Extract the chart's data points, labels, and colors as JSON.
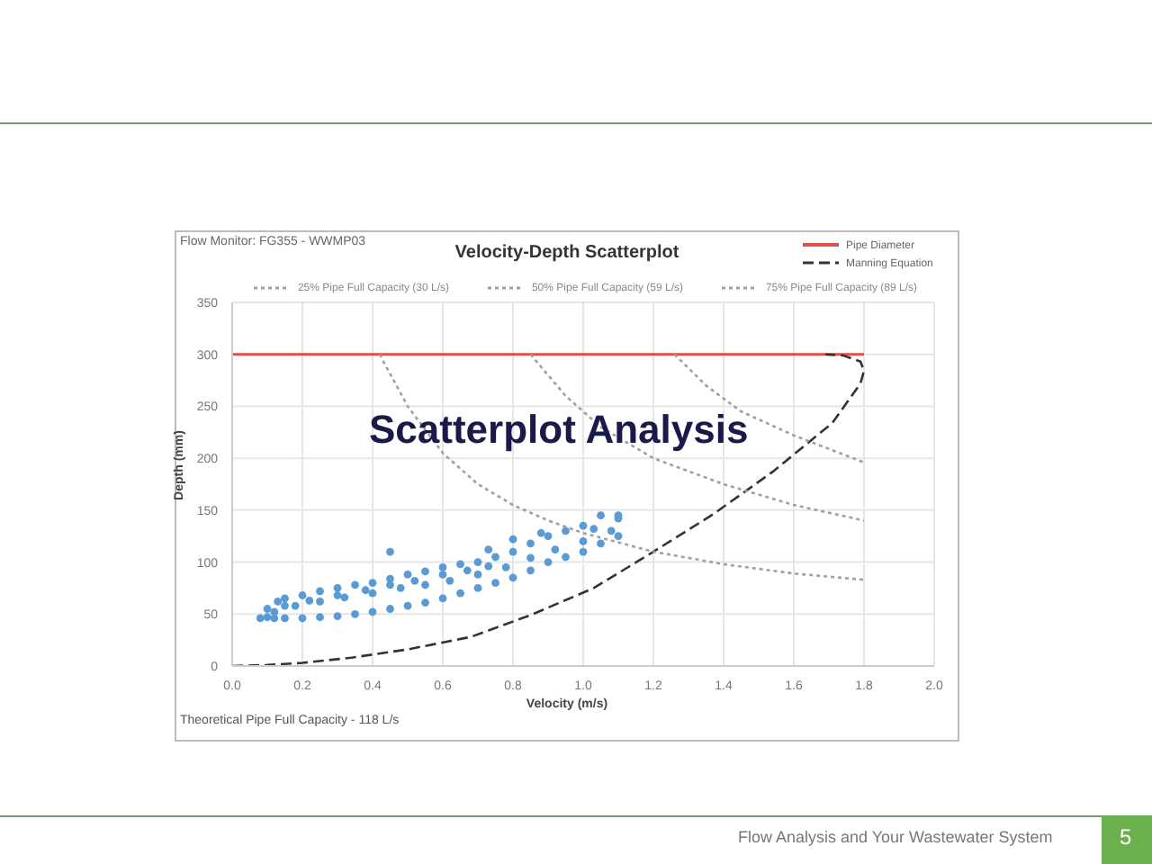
{
  "chart_data": {
    "type": "line",
    "title": "Velocity-Depth Scatterplot",
    "xlabel": "Velocity (m/s)",
    "ylabel": "Depth (mm)",
    "annotations": [
      "Flow Monitor: FG355 - WWMP03",
      "Theoretical Pipe Full Capacity - 118 L/s",
      "Scatterplot Analysis",
      "Flow Analysis and Your Wastewater System",
      "5"
    ],
    "xlim": [
      0,
      2.0
    ],
    "xticks": [
      {
        "value": 0,
        "label": "0.0"
      },
      {
        "value": 0.2,
        "label": "0.2"
      },
      {
        "value": 0.4,
        "label": "0.4"
      },
      {
        "value": 0.6,
        "label": "0.6"
      },
      {
        "value": 0.8,
        "label": "0.8"
      },
      {
        "value": 1.0,
        "label": "1.0"
      },
      {
        "value": 1.2,
        "label": "1.2"
      },
      {
        "value": 1.4,
        "label": "1.4"
      },
      {
        "value": 1.6,
        "label": "1.6"
      },
      {
        "value": 1.8,
        "label": "1.8"
      },
      {
        "value": 2.0,
        "label": "2.0"
      }
    ],
    "ylim": [
      0,
      350
    ],
    "yticks": [
      0,
      50,
      100,
      150,
      200,
      250,
      300,
      350
    ],
    "grid": true,
    "legend": "top right",
    "series": [
      {
        "name": "Pipe Diameter",
        "color": "#e0504a",
        "line_style": "solid",
        "x": [
          0,
          1.8
        ],
        "values": [
          300,
          300
        ]
      },
      {
        "name": "Manning Equation",
        "color": "#333333",
        "line_style": "dashed",
        "x": [
          0,
          0.1,
          0.2,
          0.34,
          0.5,
          0.68,
          0.85,
          1.03,
          1.2,
          1.37,
          1.54,
          1.71,
          1.79,
          1.8,
          1.79,
          1.74,
          1.69
        ],
        "values": [
          0,
          1,
          3,
          8,
          16,
          28,
          49,
          75,
          110,
          146,
          187,
          234,
          272,
          284,
          293,
          299,
          300
        ]
      },
      {
        "name": "25% Pipe Full Capacity (30 L/s)",
        "color": "#a0a0a0",
        "line_style": "dotted",
        "x": [
          0.42,
          0.5,
          0.6,
          0.7,
          0.8,
          0.9,
          1.0,
          1.2,
          1.4,
          1.6,
          1.8
        ],
        "values": [
          300,
          250,
          205,
          175,
          155,
          140,
          128,
          110,
          98,
          89,
          83
        ]
      },
      {
        "name": "50% Pipe Full Capacity (59 L/s)",
        "color": "#a0a0a0",
        "line_style": "dotted",
        "x": [
          0.85,
          0.95,
          1.05,
          1.2,
          1.4,
          1.6,
          1.8
        ],
        "values": [
          300,
          260,
          230,
          200,
          175,
          155,
          140
        ]
      },
      {
        "name": "75% Pipe Full Capacity (89 L/s)",
        "color": "#a0a0a0",
        "line_style": "dotted",
        "x": [
          1.26,
          1.35,
          1.45,
          1.6,
          1.8
        ],
        "values": [
          300,
          270,
          245,
          222,
          196
        ]
      },
      {
        "type": "scatter",
        "marker": "circle",
        "color": "#5b9bd5",
        "x": [
          0.08,
          0.1,
          0.12,
          0.15,
          0.2,
          0.25,
          0.3,
          0.35,
          0.4,
          0.45,
          0.5,
          0.55,
          0.6,
          0.65,
          0.7,
          0.75,
          0.8,
          0.85,
          0.9,
          0.95,
          1.0,
          1.05,
          1.1,
          0.1,
          0.13,
          0.15,
          0.2,
          0.25,
          0.3,
          0.35,
          0.4,
          0.45,
          0.5,
          0.55,
          0.6,
          0.65,
          0.7,
          0.75,
          0.8,
          0.85,
          0.9,
          0.95,
          1.0,
          1.05,
          1.1,
          0.12,
          0.18,
          0.25,
          0.32,
          0.4,
          0.48,
          0.55,
          0.62,
          0.7,
          0.78,
          0.85,
          0.92,
          1.0,
          1.08,
          0.15,
          0.22,
          0.3,
          0.38,
          0.45,
          0.52,
          0.6,
          0.67,
          0.73,
          0.45,
          0.73,
          0.8,
          0.88,
          1.03,
          1.1
        ],
        "values": [
          46,
          47,
          46,
          46,
          46,
          47,
          48,
          50,
          52,
          55,
          58,
          61,
          65,
          70,
          75,
          80,
          85,
          92,
          100,
          105,
          110,
          118,
          125,
          55,
          62,
          65,
          68,
          72,
          75,
          78,
          80,
          84,
          88,
          91,
          95,
          98,
          100,
          105,
          110,
          118,
          125,
          130,
          135,
          145,
          145,
          52,
          58,
          62,
          66,
          70,
          75,
          78,
          82,
          88,
          95,
          104,
          112,
          120,
          130,
          58,
          63,
          68,
          73,
          78,
          82,
          88,
          92,
          96,
          110,
          112,
          122,
          128,
          132,
          142
        ]
      }
    ]
  }
}
